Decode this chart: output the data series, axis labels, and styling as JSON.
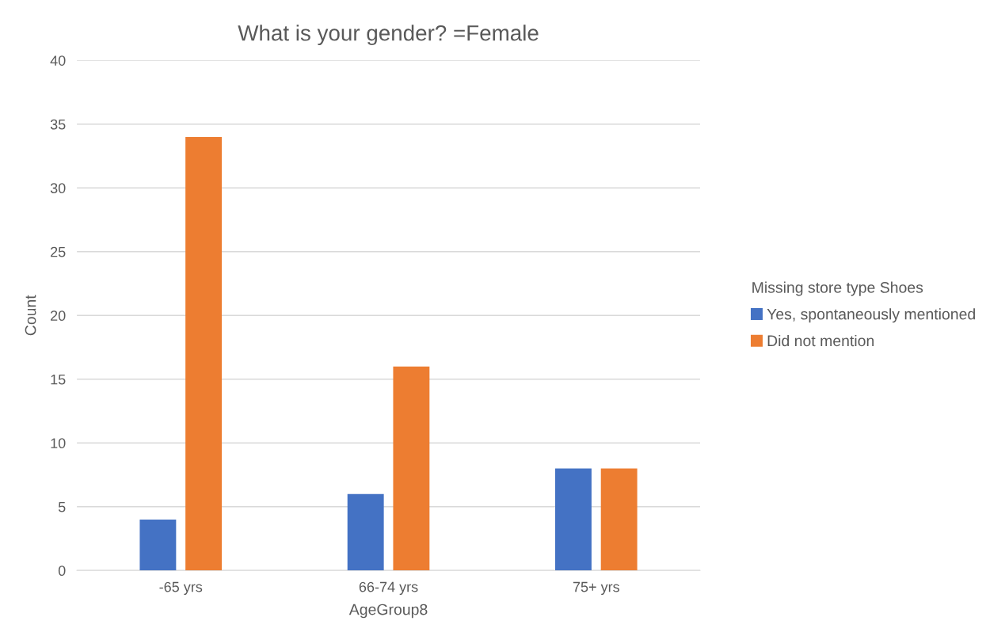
{
  "chart_data": {
    "type": "bar",
    "title": "What is your gender? =Female",
    "xlabel": "AgeGroup8",
    "ylabel": "Count",
    "legend_title": "Missing store type Shoes",
    "categories": [
      "-65 yrs",
      "66-74 yrs",
      "75+ yrs"
    ],
    "series": [
      {
        "name": "Yes, spontaneously mentioned",
        "color": "#4472c4",
        "values": [
          4,
          6,
          8
        ]
      },
      {
        "name": "Did not mention",
        "color": "#ed7d31",
        "values": [
          34,
          16,
          8
        ]
      }
    ],
    "ylim": [
      0,
      40
    ],
    "yticks": [
      0,
      5,
      10,
      15,
      20,
      25,
      30,
      35,
      40
    ],
    "grid": "y",
    "legend": "right"
  }
}
